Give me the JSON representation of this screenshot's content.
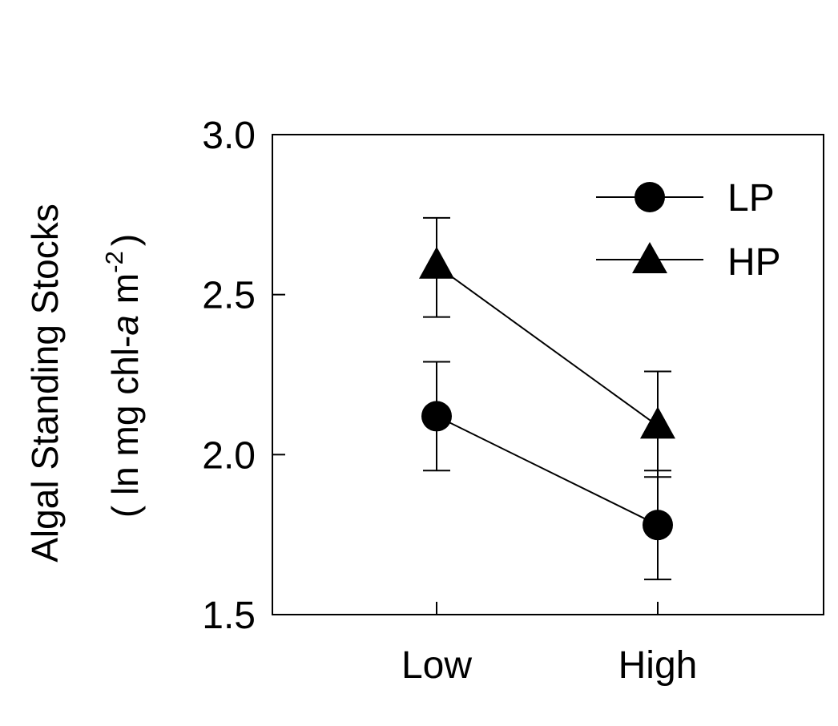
{
  "chart_data": {
    "type": "line",
    "categories": [
      "Low",
      "High"
    ],
    "series": [
      {
        "name": "LP",
        "marker": "circle",
        "values": [
          2.12,
          1.78
        ],
        "error_low": [
          1.95,
          1.61
        ],
        "error_high": [
          2.29,
          1.95
        ]
      },
      {
        "name": "HP",
        "marker": "triangle",
        "values": [
          2.59,
          2.09
        ],
        "error_low": [
          2.43,
          1.93
        ],
        "error_high": [
          2.74,
          2.26
        ]
      }
    ],
    "ylabel_line1": "Algal Standing Stocks",
    "ylabel_line2_prefix": "( ln mg chl-",
    "ylabel_line2_italic": "a",
    "ylabel_line2_unit": "m",
    "ylabel_line2_sup": "-2",
    "ylabel_line2_suffix": ")",
    "ylim": [
      1.5,
      3.0
    ],
    "yticks": [
      1.5,
      2.0,
      2.5,
      3.0
    ],
    "ytick_labels": [
      "1.5",
      "2.0",
      "2.5",
      "3.0"
    ],
    "grid": false,
    "legend_position": "top-right",
    "colors": {
      "line": "#000000",
      "marker": "#000000",
      "background": "#ffffff"
    }
  }
}
